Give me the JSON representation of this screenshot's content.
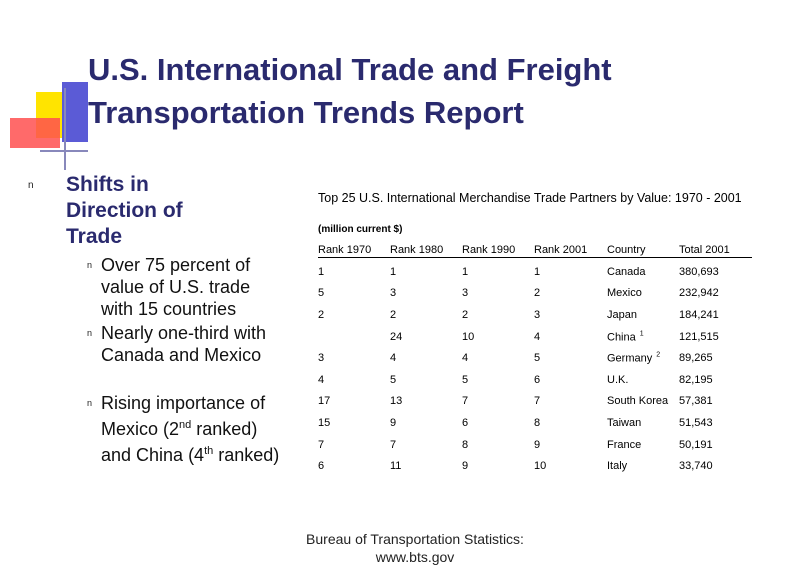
{
  "header": {
    "title_lines": [
      "U.S. International Trade and Freight",
      "Transportation Trends Report"
    ]
  },
  "bullet_glyph": "n",
  "left": {
    "heading": "Shifts in Direction of Trade",
    "items": [
      {
        "parts": [
          {
            "text": "Over 75 percent of value of U.S. trade with 15 countries"
          }
        ]
      },
      {
        "parts": [
          {
            "text": "Nearly one-third with Canada and Mexico"
          }
        ]
      },
      {
        "parts": [
          {
            "text": "Rising importance of Mexico (2"
          },
          {
            "sup": "nd"
          },
          {
            "text": " ranked) and China (4"
          },
          {
            "sup": "th"
          },
          {
            "text": " ranked)"
          }
        ]
      }
    ]
  },
  "table": {
    "title": "Top 25 U.S. International Merchandise Trade Partners by Value: 1970 - 2001",
    "subtitle": "(million current $)",
    "columns": [
      "Rank 1970",
      "Rank 1980",
      "Rank 1990",
      "Rank 2001",
      "Country",
      "Total 2001"
    ],
    "rows": [
      [
        1,
        1,
        1,
        1,
        "Canada",
        "380,693"
      ],
      [
        5,
        3,
        3,
        2,
        "Mexico",
        "232,942"
      ],
      [
        2,
        2,
        2,
        3,
        "Japan",
        "184,241"
      ],
      [
        null,
        24,
        10,
        4,
        "China",
        "121,515"
      ],
      [
        3,
        4,
        4,
        5,
        "Germany",
        "89,265"
      ],
      [
        4,
        5,
        5,
        6,
        "U.K.",
        "82,195"
      ],
      [
        17,
        13,
        7,
        7,
        "South Korea",
        "57,381"
      ],
      [
        15,
        9,
        6,
        8,
        "Taiwan",
        "51,543"
      ],
      [
        7,
        7,
        8,
        9,
        "France",
        "50,191"
      ],
      [
        6,
        11,
        9,
        10,
        "Italy",
        "33,740"
      ]
    ],
    "country_notes": [
      null,
      null,
      null,
      "1",
      "2",
      null,
      null,
      null,
      null,
      null
    ]
  },
  "footer": {
    "lines": [
      "Bureau of Transportation Statistics:",
      "www.bts.gov"
    ]
  }
}
